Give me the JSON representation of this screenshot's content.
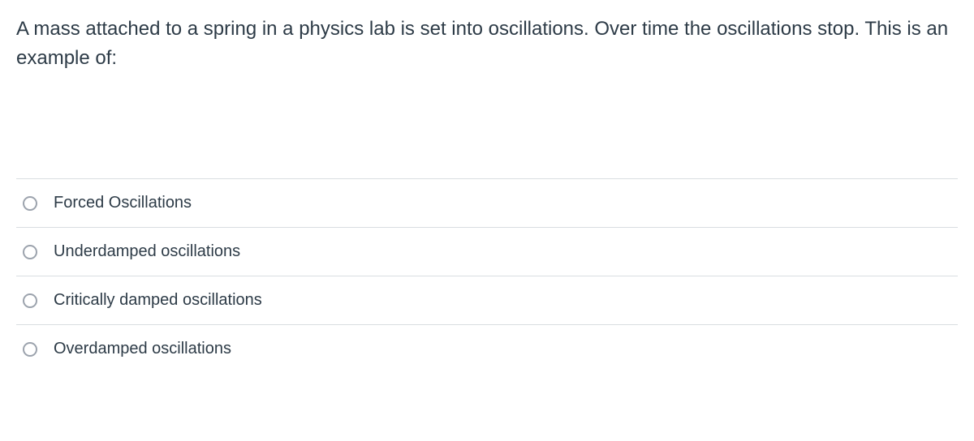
{
  "question": {
    "text": "A mass attached to a spring in a physics lab is set into oscillations. Over time the oscillations stop. This is an example of:"
  },
  "options": [
    {
      "label": "Forced Oscillations",
      "selected": false
    },
    {
      "label": "Underdamped oscillations",
      "selected": false
    },
    {
      "label": "Critically damped oscillations",
      "selected": false
    },
    {
      "label": "Overdamped oscillations",
      "selected": false
    }
  ],
  "colors": {
    "text": "#2d3b47",
    "border": "#d9dde1",
    "radio_border": "#9ca3ad",
    "background": "#ffffff"
  }
}
